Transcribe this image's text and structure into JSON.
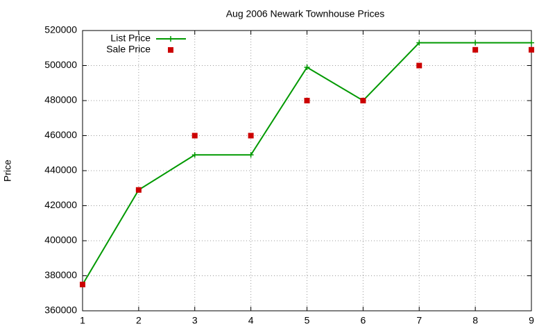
{
  "chart_data": {
    "type": "line",
    "title": "Aug 2006 Newark Townhouse Prices",
    "y_label": "Price",
    "x": [
      1,
      2,
      3,
      4,
      5,
      6,
      7,
      8,
      9
    ],
    "series": [
      {
        "name": "List Price",
        "color": "#009900",
        "style": "linespoints",
        "values": [
          375000,
          429000,
          449000,
          449000,
          499000,
          480000,
          513000,
          513000,
          513000
        ]
      },
      {
        "name": "Sale Price",
        "color": "#cc0000",
        "style": "points",
        "values": [
          375000,
          429000,
          460000,
          460000,
          480000,
          480000,
          500000,
          509000,
          509000
        ]
      }
    ],
    "xlim": [
      1,
      9
    ],
    "xticks": [
      1,
      2,
      3,
      4,
      5,
      6,
      7,
      8,
      9
    ],
    "ylim": [
      360000,
      520000
    ],
    "yticks": [
      360000,
      380000,
      400000,
      420000,
      440000,
      460000,
      480000,
      500000,
      520000
    ],
    "grid": true,
    "legend": "top-left"
  }
}
